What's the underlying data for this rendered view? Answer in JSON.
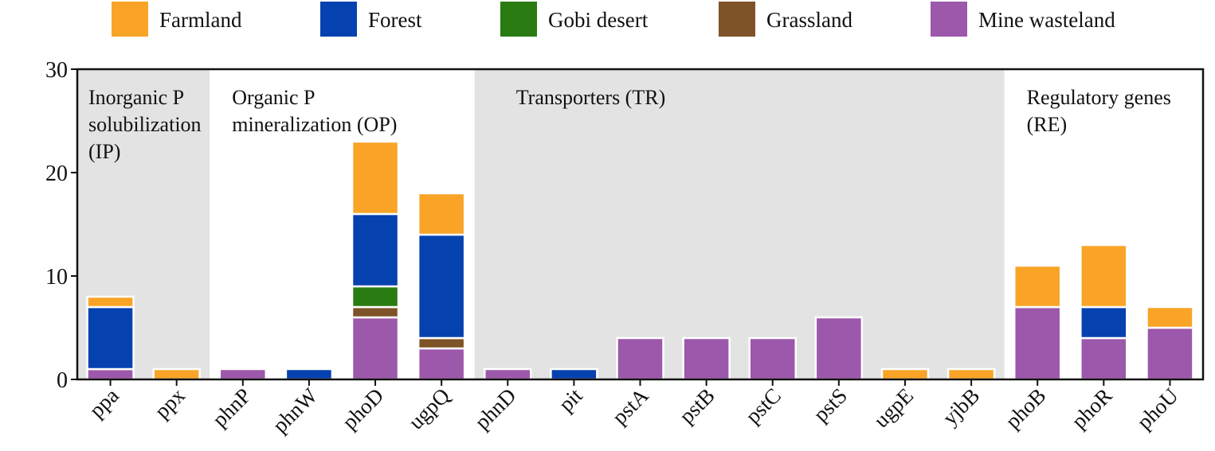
{
  "legend": [
    {
      "label": "Farmland",
      "color": "#F9A427"
    },
    {
      "label": "Forest",
      "color": "#0641B0"
    },
    {
      "label": "Gobi desert",
      "color": "#2A7B12"
    },
    {
      "label": "Grassland",
      "color": "#7E5327"
    },
    {
      "label": "Mine wasteland",
      "color": "#9C58AA"
    }
  ],
  "chart_data": {
    "type": "bar",
    "stacked": true,
    "categories": [
      "ppa",
      "ppx",
      "phnP",
      "phnW",
      "phoD",
      "ugpQ",
      "phnD",
      "pit",
      "pstA",
      "pstB",
      "pstC",
      "pstS",
      "ugpE",
      "yjbB",
      "phoB",
      "phoR",
      "phoU"
    ],
    "series": [
      {
        "name": "Mine wasteland",
        "color": "#9C58AA",
        "values": [
          1,
          0,
          1,
          0,
          6,
          3,
          1,
          0,
          4,
          4,
          4,
          6,
          0,
          0,
          7,
          4,
          5
        ]
      },
      {
        "name": "Grassland",
        "color": "#7E5327",
        "values": [
          0,
          0,
          0,
          0,
          1,
          1,
          0,
          0,
          0,
          0,
          0,
          0,
          0,
          0,
          0,
          0,
          0
        ]
      },
      {
        "name": "Gobi desert",
        "color": "#2A7B12",
        "values": [
          0,
          0,
          0,
          0,
          2,
          0,
          0,
          0,
          0,
          0,
          0,
          0,
          0,
          0,
          0,
          0,
          0
        ]
      },
      {
        "name": "Forest",
        "color": "#0641B0",
        "values": [
          6,
          0,
          0,
          1,
          7,
          10,
          0,
          1,
          0,
          0,
          0,
          0,
          0,
          0,
          0,
          3,
          0
        ]
      },
      {
        "name": "Farmland",
        "color": "#F9A427",
        "values": [
          1,
          1,
          0,
          0,
          7,
          4,
          0,
          0,
          0,
          0,
          0,
          0,
          1,
          1,
          4,
          6,
          2
        ]
      }
    ],
    "ylim": [
      0,
      30
    ],
    "yticks": [
      0,
      10,
      20,
      30
    ],
    "groups": [
      {
        "lines": [
          "Inorganic P",
          "solubilization",
          "(IP)"
        ],
        "start": 0,
        "end": 1,
        "shaded": true
      },
      {
        "lines": [
          "Organic P",
          "mineralization (OP)"
        ],
        "start": 2,
        "end": 5,
        "shaded": false
      },
      {
        "lines": [
          "Transporters (TR)"
        ],
        "start": 6,
        "end": 13,
        "shaded": true
      },
      {
        "lines": [
          "Regulatory genes",
          "(RE)"
        ],
        "start": 14,
        "end": 16,
        "shaded": false
      }
    ],
    "shade_color": "#E3E3E3"
  }
}
